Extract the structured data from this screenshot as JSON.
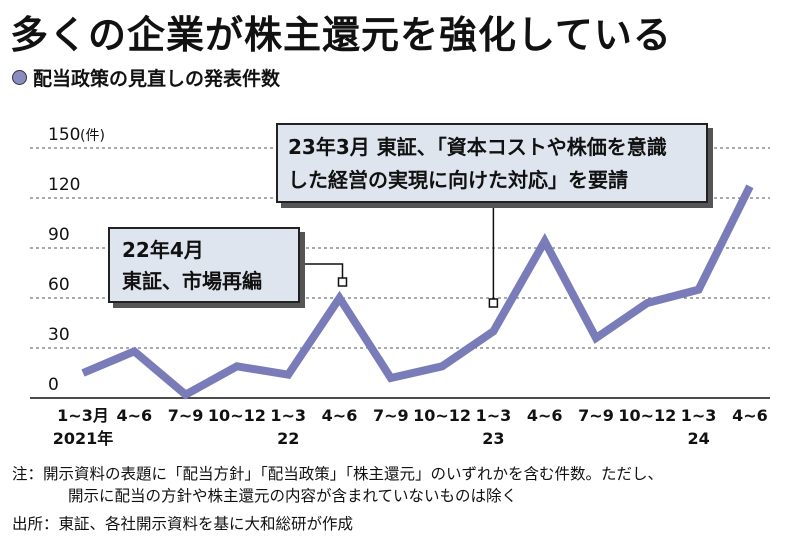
{
  "title": "多くの企業が株主還元を強化している",
  "subtitle": "配当政策の見直しの発表件数",
  "chart_data": {
    "type": "line",
    "categories": [
      "1~3月",
      "4~6",
      "7~9",
      "10~12",
      "1~3",
      "4~6",
      "7~9",
      "10~12",
      "1~3",
      "4~6",
      "7~9",
      "10~12",
      "1~3",
      "4~6"
    ],
    "year_labels": [
      "2021年",
      "",
      "",
      "",
      "22",
      "",
      "",
      "",
      "23",
      "",
      "",
      "",
      "24",
      ""
    ],
    "values": [
      15,
      28,
      2,
      19,
      14,
      60,
      12,
      19,
      40,
      94,
      36,
      57,
      65,
      127
    ],
    "y_ticks": [
      "150",
      "120",
      "90",
      "60",
      "30",
      "0"
    ],
    "y_unit": "(件)",
    "ylim": [
      0,
      150
    ],
    "line_color": "#7a7cba",
    "grid": true
  },
  "annotations": {
    "callout1": {
      "line1": "23年3月  東証、「資本コストや株価を意識",
      "line2": "した経営の実現に向けた対応」を要請"
    },
    "callout2": {
      "line1": "22年4月",
      "line2": "東証、市場再編"
    }
  },
  "notes": {
    "note1": "注：開示資料の表題に「配当方針」「配当政策」「株主還元」のいずれかを含む件数。ただし、",
    "note2": "開示に配当の方針や株主還元の内容が含まれていないものは除く",
    "source": "出所：東証、各社開示資料を基に大和総研が作成"
  }
}
